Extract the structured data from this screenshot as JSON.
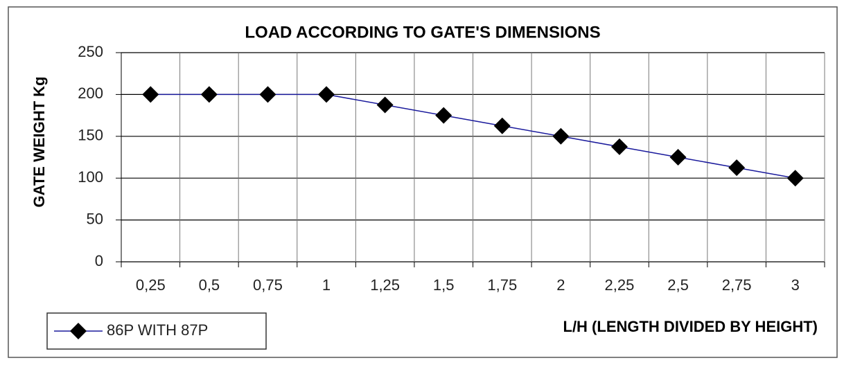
{
  "chart_data": {
    "type": "line",
    "title": "LOAD ACCORDING TO GATE'S DIMENSIONS",
    "y_label": "GATE WEIGHT Kg",
    "x_label": "L/H (LENGTH DIVIDED BY  HEIGHT)",
    "categories": [
      "0,25",
      "0,5",
      "0,75",
      "1",
      "1,25",
      "1,5",
      "1,75",
      "2",
      "2,25",
      "2,5",
      "2,75",
      "3"
    ],
    "series": [
      {
        "name": "86P WITH 87P",
        "color": "#1a1a9c",
        "marker_color": "#000000",
        "values": [
          200,
          200,
          200,
          200,
          187.5,
          175,
          162.5,
          150,
          137.5,
          125,
          112.5,
          100
        ]
      }
    ],
    "ylim": [
      0,
      250
    ],
    "yticks": [
      0,
      50,
      100,
      150,
      200,
      250
    ],
    "grid": true,
    "legend": "bottom-left"
  }
}
